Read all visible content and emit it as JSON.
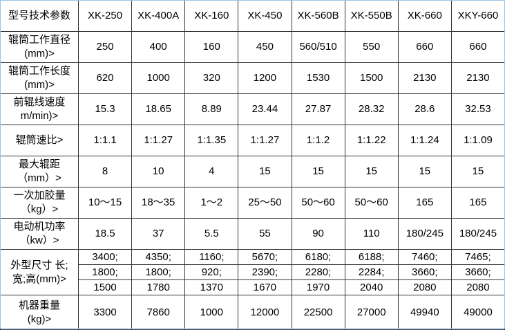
{
  "header": {
    "label": "型号技术参数",
    "models": [
      "XK-250",
      "XK-400A",
      "XK-160",
      "XK-450",
      "XK-560B",
      "XK-550B",
      "XK-660",
      "XKY-660"
    ]
  },
  "rows": [
    {
      "label1": "辊筒工作直径",
      "label2": "(mm)>",
      "values": [
        "250",
        "400",
        "160",
        "450",
        "560/510",
        "550",
        "660",
        "660"
      ]
    },
    {
      "label1": "辊筒工作长度",
      "label2": "(mm)>",
      "values": [
        "620",
        "1000",
        "320",
        "1200",
        "1530",
        "1500",
        "2130",
        "2130"
      ]
    },
    {
      "label1": "前辊线速度",
      "label2": "m/min)>",
      "values": [
        "15.3",
        "18.65",
        "8.89",
        "23.44",
        "27.87",
        "28.32",
        "28.6",
        "32.53"
      ]
    },
    {
      "label1": "辊筒速比>",
      "label2": "",
      "values": [
        "1:1.1",
        "1:1.27",
        "1:1.35",
        "1:1.27",
        "1:1.2",
        "1:1.22",
        "1:1.24",
        "1:1.09"
      ]
    },
    {
      "label1": "最大辊距",
      "label2": "（mm）>",
      "values": [
        "8",
        "10",
        "4",
        "15",
        "15",
        "15",
        "15",
        "15"
      ]
    },
    {
      "label1": "一次加胶量",
      "label2": "（kg）>",
      "values": [
        "10～15",
        "18～35",
        "1～2",
        "25～50",
        "50～60",
        "50～60",
        "165",
        "165"
      ]
    },
    {
      "label1": "电动机功率",
      "label2": "（kw）>",
      "values": [
        "18.5",
        "37",
        "5.5",
        "55",
        "90",
        "110",
        "180/245",
        "180/245"
      ]
    }
  ],
  "dims": {
    "label1": "外型尺寸 长;",
    "label2": "宽;高(mm)>",
    "length": [
      "3400;",
      "4350;",
      "1160;",
      "5670;",
      "6180;",
      "6188;",
      "7460;",
      "7465;"
    ],
    "width": [
      "1800;",
      "1800;",
      "920;",
      "2390;",
      "2280;",
      "2284;",
      "3660;",
      "3660;"
    ],
    "height": [
      "1500",
      "1780",
      "1370",
      "1670",
      "1970",
      "2040",
      "2080",
      "2080"
    ]
  },
  "weight": {
    "label1": "机器重量",
    "label2": "(kg)>",
    "values": [
      "3300",
      "7860",
      "1000",
      "12000",
      "22500",
      "27000",
      "49940",
      "49000"
    ]
  }
}
